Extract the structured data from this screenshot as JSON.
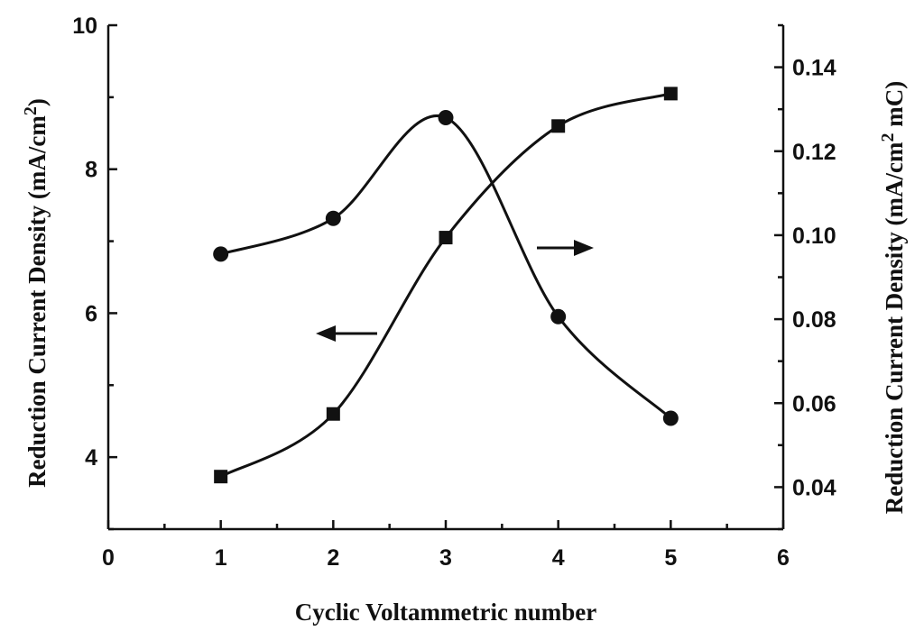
{
  "chart_data": {
    "type": "line",
    "xlabel": "Cyclic Voltammetric number",
    "ylabel_left": "Reduction Current Density (mA/cm",
    "ylabel_left_sup": "2",
    "ylabel_left_end": ")",
    "ylabel_right": "Reduction Current Density (mA/cm",
    "ylabel_right_sup": "2",
    "ylabel_right_end": " mC)",
    "xlim": [
      0,
      6
    ],
    "ylim_left": [
      3,
      10
    ],
    "ylim_right": [
      0.03,
      0.15
    ],
    "x_ticks": [
      "0",
      "1",
      "2",
      "3",
      "4",
      "5",
      "6"
    ],
    "y_left_ticks": [
      "4",
      "6",
      "8",
      "10"
    ],
    "y_right_ticks": [
      "0.04",
      "0.06",
      "0.08",
      "0.10",
      "0.12",
      "0.14"
    ],
    "grid": false,
    "series": [
      {
        "marker": "square",
        "axis": "left",
        "x": [
          1,
          2,
          3,
          4,
          5
        ],
        "values": [
          3.73,
          4.6,
          7.05,
          8.6,
          9.05
        ]
      },
      {
        "marker": "circle",
        "axis": "right",
        "x": [
          1,
          2,
          3,
          4,
          5
        ],
        "values": [
          0.0955,
          0.104,
          0.128,
          0.0806,
          0.0564
        ]
      }
    ],
    "annotations": [
      {
        "type": "arrow",
        "direction": "left",
        "series_axis": "left"
      },
      {
        "type": "arrow",
        "direction": "right",
        "series_axis": "right"
      }
    ]
  }
}
